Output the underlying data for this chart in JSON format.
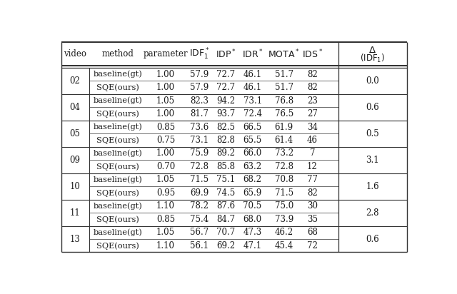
{
  "videos": [
    "02",
    "04",
    "05",
    "09",
    "10",
    "11",
    "13"
  ],
  "deltas": [
    "0.0",
    "0.6",
    "0.5",
    "3.1",
    "1.6",
    "2.8",
    "0.6"
  ],
  "rows": [
    [
      "baseline(gt)",
      "1.00",
      "57.9",
      "72.7",
      "46.1",
      "51.7",
      "82"
    ],
    [
      "SQE(ours)",
      "1.00",
      "57.9",
      "72.7",
      "46.1",
      "51.7",
      "82"
    ],
    [
      "baseline(gt)",
      "1.05",
      "82.3",
      "94.2",
      "73.1",
      "76.8",
      "23"
    ],
    [
      "SQE(ours)",
      "1.00",
      "81.7",
      "93.7",
      "72.4",
      "76.5",
      "27"
    ],
    [
      "baseline(gt)",
      "0.85",
      "73.6",
      "82.5",
      "66.5",
      "61.9",
      "34"
    ],
    [
      "SQE(ours)",
      "0.75",
      "73.1",
      "82.8",
      "65.5",
      "61.4",
      "46"
    ],
    [
      "baseline(gt)",
      "1.00",
      "75.9",
      "89.2",
      "66.0",
      "73.2",
      "7"
    ],
    [
      "SQE(ours)",
      "0.70",
      "72.8",
      "85.8",
      "63.2",
      "72.8",
      "12"
    ],
    [
      "baseline(gt)",
      "1.05",
      "71.5",
      "75.1",
      "68.2",
      "70.8",
      "77"
    ],
    [
      "SQE(ours)",
      "0.95",
      "69.9",
      "74.5",
      "65.9",
      "71.5",
      "82"
    ],
    [
      "baseline(gt)",
      "1.10",
      "78.2",
      "87.6",
      "70.5",
      "75.0",
      "30"
    ],
    [
      "SQE(ours)",
      "0.85",
      "75.4",
      "84.7",
      "68.0",
      "73.9",
      "35"
    ],
    [
      "baseline(gt)",
      "1.05",
      "56.7",
      "70.7",
      "47.3",
      "46.2",
      "68"
    ],
    [
      "SQE(ours)",
      "1.10",
      "56.1",
      "69.2",
      "47.1",
      "45.4",
      "72"
    ]
  ],
  "bg_color": "#ffffff",
  "text_color": "#1a1a1a",
  "line_color": "#333333",
  "fontsize": 8.5,
  "fontfamily": "DejaVu Serif"
}
